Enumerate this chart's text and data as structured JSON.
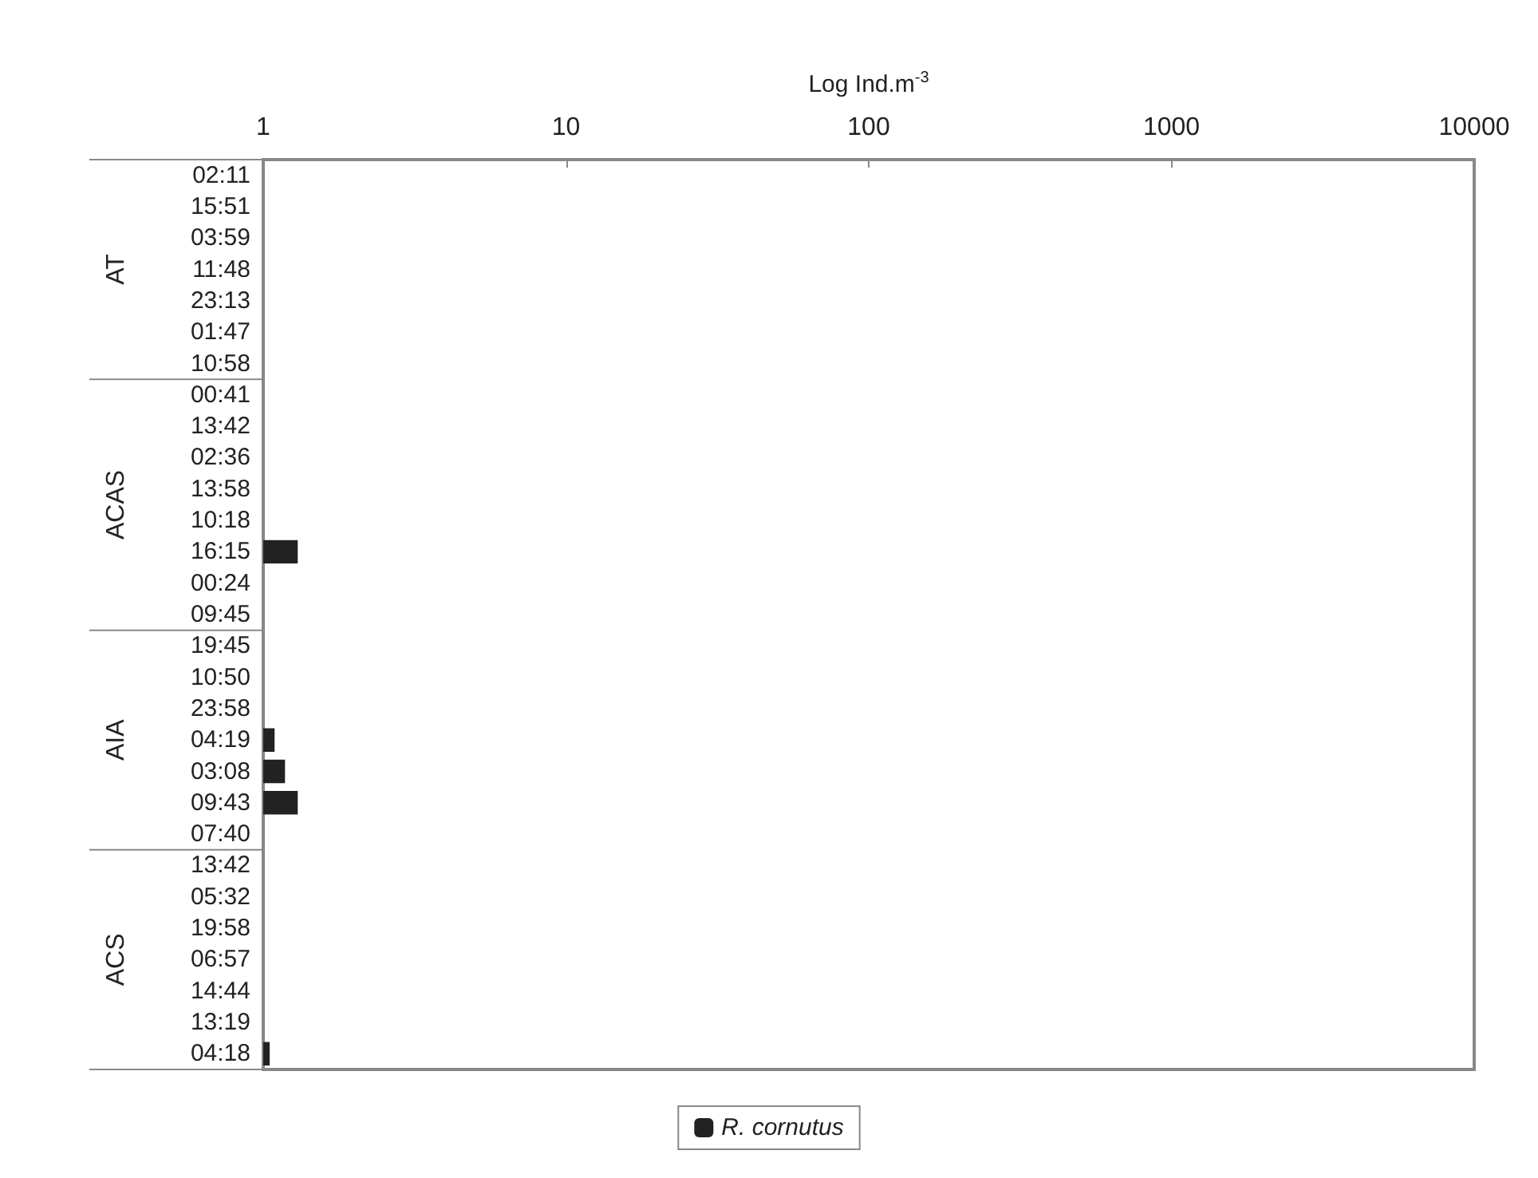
{
  "chart_data": {
    "type": "bar",
    "orientation": "horizontal",
    "xlabel": "Log Ind.m$^{-3}$",
    "log": "x",
    "xlim": [
      1,
      10000
    ],
    "xticks": [
      1,
      10,
      100,
      1000,
      10000
    ],
    "grid": false,
    "legend": "bottom",
    "categories": [
      "02:11",
      "15:51",
      "03:59",
      "11:48",
      "23:13",
      "01:47",
      "10:58",
      "00:41",
      "13:42",
      "02:36",
      "13:58",
      "10:18",
      "16:15",
      "00:24",
      "09:45",
      "19:45",
      "10:50",
      "23:58",
      "04:19",
      "03:08",
      "09:43",
      "07:40",
      "13:42",
      "05:32",
      "19:58",
      "06:57",
      "14:44",
      "13:19",
      "04:18"
    ],
    "series": [
      {
        "name": "R. cornutus",
        "color": "#222222",
        "values": [
          null,
          null,
          null,
          null,
          null,
          null,
          null,
          null,
          null,
          null,
          null,
          null,
          1.3,
          null,
          null,
          null,
          null,
          null,
          1.09,
          1.18,
          1.3,
          null,
          null,
          null,
          null,
          null,
          null,
          null,
          1.05
        ]
      }
    ],
    "annotations": [
      "AT",
      "ACAS",
      "AIA",
      "ACS"
    ]
  }
}
